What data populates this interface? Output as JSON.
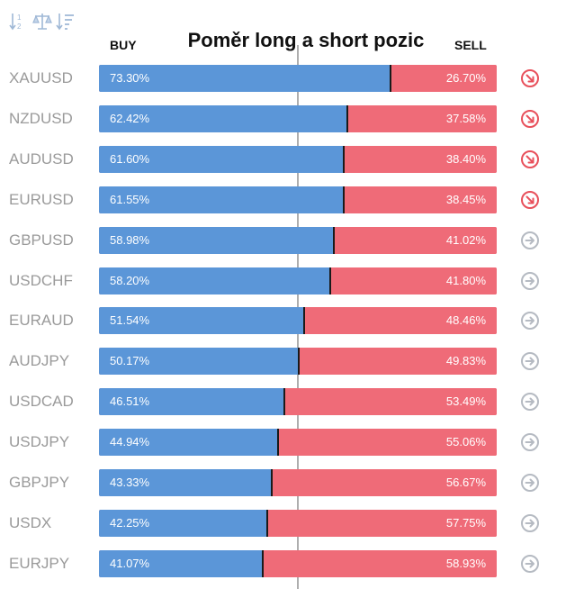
{
  "toolbar": {
    "icons": [
      "sort-alpha-icon",
      "balance-scale-icon",
      "sort-descending-icon"
    ]
  },
  "header": {
    "title": "Poměr long a short pozic",
    "buy_label": "BUY",
    "sell_label": "SELL"
  },
  "colors": {
    "buy": "#5b96d8",
    "sell": "#ef6b78",
    "signal_down": "#e8505b",
    "signal_neutral": "#b5bac2"
  },
  "chart_data": {
    "type": "bar",
    "orientation": "horizontal",
    "stacked": true,
    "title": "Poměr long a short pozic",
    "categories": [
      "XAUUSD",
      "NZDUSD",
      "AUDUSD",
      "EURUSD",
      "GBPUSD",
      "USDCHF",
      "EURAUD",
      "AUDJPY",
      "USDCAD",
      "USDJPY",
      "GBPJPY",
      "USDX",
      "EURJPY"
    ],
    "series": [
      {
        "name": "BUY",
        "values": [
          73.3,
          62.42,
          61.6,
          61.55,
          58.98,
          58.2,
          51.54,
          50.17,
          46.51,
          44.94,
          43.33,
          42.25,
          41.07
        ]
      },
      {
        "name": "SELL",
        "values": [
          26.7,
          37.58,
          38.4,
          38.45,
          41.02,
          41.8,
          48.46,
          49.83,
          53.49,
          55.06,
          56.67,
          57.75,
          58.93
        ]
      }
    ],
    "labels": {
      "buy": [
        "73.30%",
        "62.42%",
        "61.60%",
        "61.55%",
        "58.98%",
        "58.20%",
        "51.54%",
        "50.17%",
        "46.51%",
        "44.94%",
        "43.33%",
        "42.25%",
        "41.07%"
      ],
      "sell": [
        "26.70%",
        "37.58%",
        "38.40%",
        "38.45%",
        "41.02%",
        "41.80%",
        "48.46%",
        "49.83%",
        "53.49%",
        "55.06%",
        "56.67%",
        "57.75%",
        "58.93%"
      ]
    },
    "signals": [
      "down-right",
      "down-right",
      "down-right",
      "down-right",
      "right",
      "right",
      "right",
      "right",
      "right",
      "right",
      "right",
      "right",
      "right"
    ],
    "xlim": [
      0,
      100
    ],
    "reference_line": 50
  }
}
